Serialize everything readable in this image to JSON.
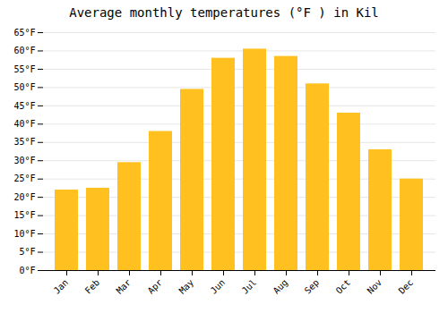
{
  "chart_data": {
    "type": "bar",
    "title": "Average monthly temperatures (°F ) in Kil",
    "categories": [
      "Jan",
      "Feb",
      "Mar",
      "Apr",
      "May",
      "Jun",
      "Jul",
      "Aug",
      "Sep",
      "Oct",
      "Nov",
      "Dec"
    ],
    "values": [
      22,
      22.5,
      29.5,
      38,
      49.5,
      58,
      60.5,
      58.5,
      51,
      43,
      33,
      25
    ],
    "color": "#FFC020",
    "ylim": [
      0,
      65
    ],
    "yticks": [
      {
        "value": 0,
        "label": "0°F"
      },
      {
        "value": 5,
        "label": "5°F"
      },
      {
        "value": 10,
        "label": "10°F"
      },
      {
        "value": 15,
        "label": "15°F"
      },
      {
        "value": 20,
        "label": "20°F"
      },
      {
        "value": 25,
        "label": "25°F"
      },
      {
        "value": 30,
        "label": "30°F"
      },
      {
        "value": 35,
        "label": "35°F"
      },
      {
        "value": 40,
        "label": "40°F"
      },
      {
        "value": 45,
        "label": "45°F"
      },
      {
        "value": 50,
        "label": "50°F"
      },
      {
        "value": 55,
        "label": "55°F"
      },
      {
        "value": 60,
        "label": "60°F"
      },
      {
        "value": 65,
        "label": "65°F"
      }
    ],
    "grid": true
  }
}
